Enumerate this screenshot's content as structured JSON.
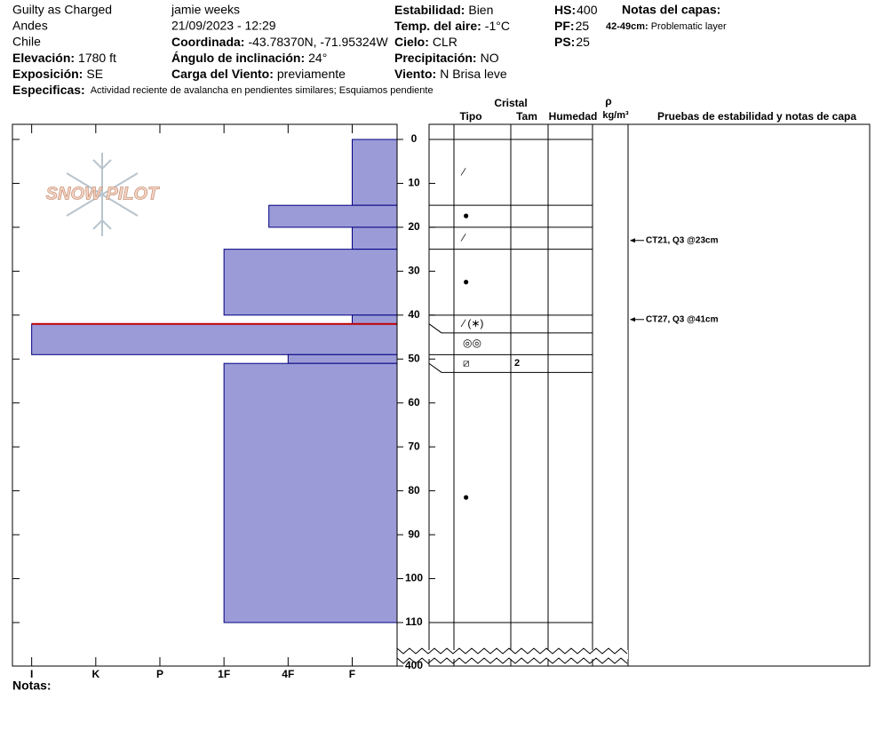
{
  "header": {
    "columns": [
      [
        {
          "text": "Guilty as Charged"
        },
        {
          "text": "Andes"
        },
        {
          "text": "Chile"
        },
        {
          "label": "Elevación:",
          "value": "1780 ft"
        },
        {
          "label": "Exposición:",
          "value": "SE"
        }
      ],
      [
        {
          "text": "jamie weeks"
        },
        {
          "text": "21/09/2023 - 12:29"
        },
        {
          "label": "Coordinada:",
          "value": "-43.78370N, -71.95324W"
        },
        {
          "label": "Ángulo de inclinación:",
          "value": "24°"
        },
        {
          "label": "Carga del Viento:",
          "value": "previamente"
        }
      ],
      [
        {
          "label": "Estabilidad:",
          "value": "Bien"
        },
        {
          "label": "Temp. del aire:",
          "value": "-1°C"
        },
        {
          "label": "Cielo:",
          "value": "CLR"
        },
        {
          "label": "Precipitación:",
          "value": "NO"
        },
        {
          "label": "Viento:",
          "value": "N Brisa leve"
        }
      ],
      [
        {
          "label": "HS:",
          "value": "400"
        },
        {
          "label": "PF:",
          "value": "25"
        },
        {
          "label": "PS:",
          "value": "25"
        }
      ]
    ],
    "notes_title": "Notas del capas:",
    "notes": [
      {
        "label": "42-49cm:",
        "value": "Problematic layer"
      }
    ],
    "specifics": {
      "label": "Especificas:",
      "value": "Actividad reciente de avalancha en pendientes similares; Esquiamos pendiente"
    },
    "footer": "Notas:",
    "logo": "SNOW PILOT"
  },
  "chart_data": {
    "type": "snow-profile",
    "xlim": [
      6.3,
      0.3
    ],
    "xticks": [
      {
        "value": 6,
        "label": "I"
      },
      {
        "value": 5,
        "label": "K"
      },
      {
        "value": 4,
        "label": "P"
      },
      {
        "value": 3,
        "label": "1F"
      },
      {
        "value": 2,
        "label": "4F"
      },
      {
        "value": 1,
        "label": "F"
      }
    ],
    "ylim": [
      0,
      110
    ],
    "yticks": [
      0,
      10,
      20,
      30,
      40,
      50,
      60,
      70,
      80,
      90,
      100,
      110
    ],
    "hs_tick": 400,
    "fill_color": "#9b9bd8",
    "edge_color": "#000080",
    "critical_color": "#c00000",
    "table_headers": {
      "crystal": "Cristal",
      "type": "Tipo",
      "size": "Tam",
      "moisture": "Humedad",
      "rho": "ρ",
      "density": "kg/m³",
      "tests": "Pruebas de estabilidad y notas de capa"
    },
    "layers": [
      {
        "top": 0,
        "bottom": 15,
        "hardness": 1,
        "grain": "∕"
      },
      {
        "top": 15,
        "bottom": 20,
        "hardness": 2.3,
        "grain": "●"
      },
      {
        "top": 20,
        "bottom": 25,
        "hardness": 1,
        "grain": "∕"
      },
      {
        "top": 25,
        "bottom": 40,
        "hardness": 3,
        "grain": "●"
      },
      {
        "top": 40,
        "bottom": 42,
        "hardness": 1,
        "grain": "∕ (∗)"
      },
      {
        "top": 42,
        "bottom": 49,
        "hardness": 6,
        "grain": "◎◎",
        "critical": true
      },
      {
        "top": 49,
        "bottom": 51,
        "hardness": 2,
        "grain": "⧄",
        "size": "2"
      },
      {
        "top": 51,
        "bottom": 110,
        "hardness": 3,
        "grain": "●"
      }
    ],
    "tests": [
      {
        "depth": 23,
        "text": "CT21, Q3 @23cm"
      },
      {
        "depth": 41,
        "text": "CT27, Q3 @41cm"
      }
    ]
  }
}
